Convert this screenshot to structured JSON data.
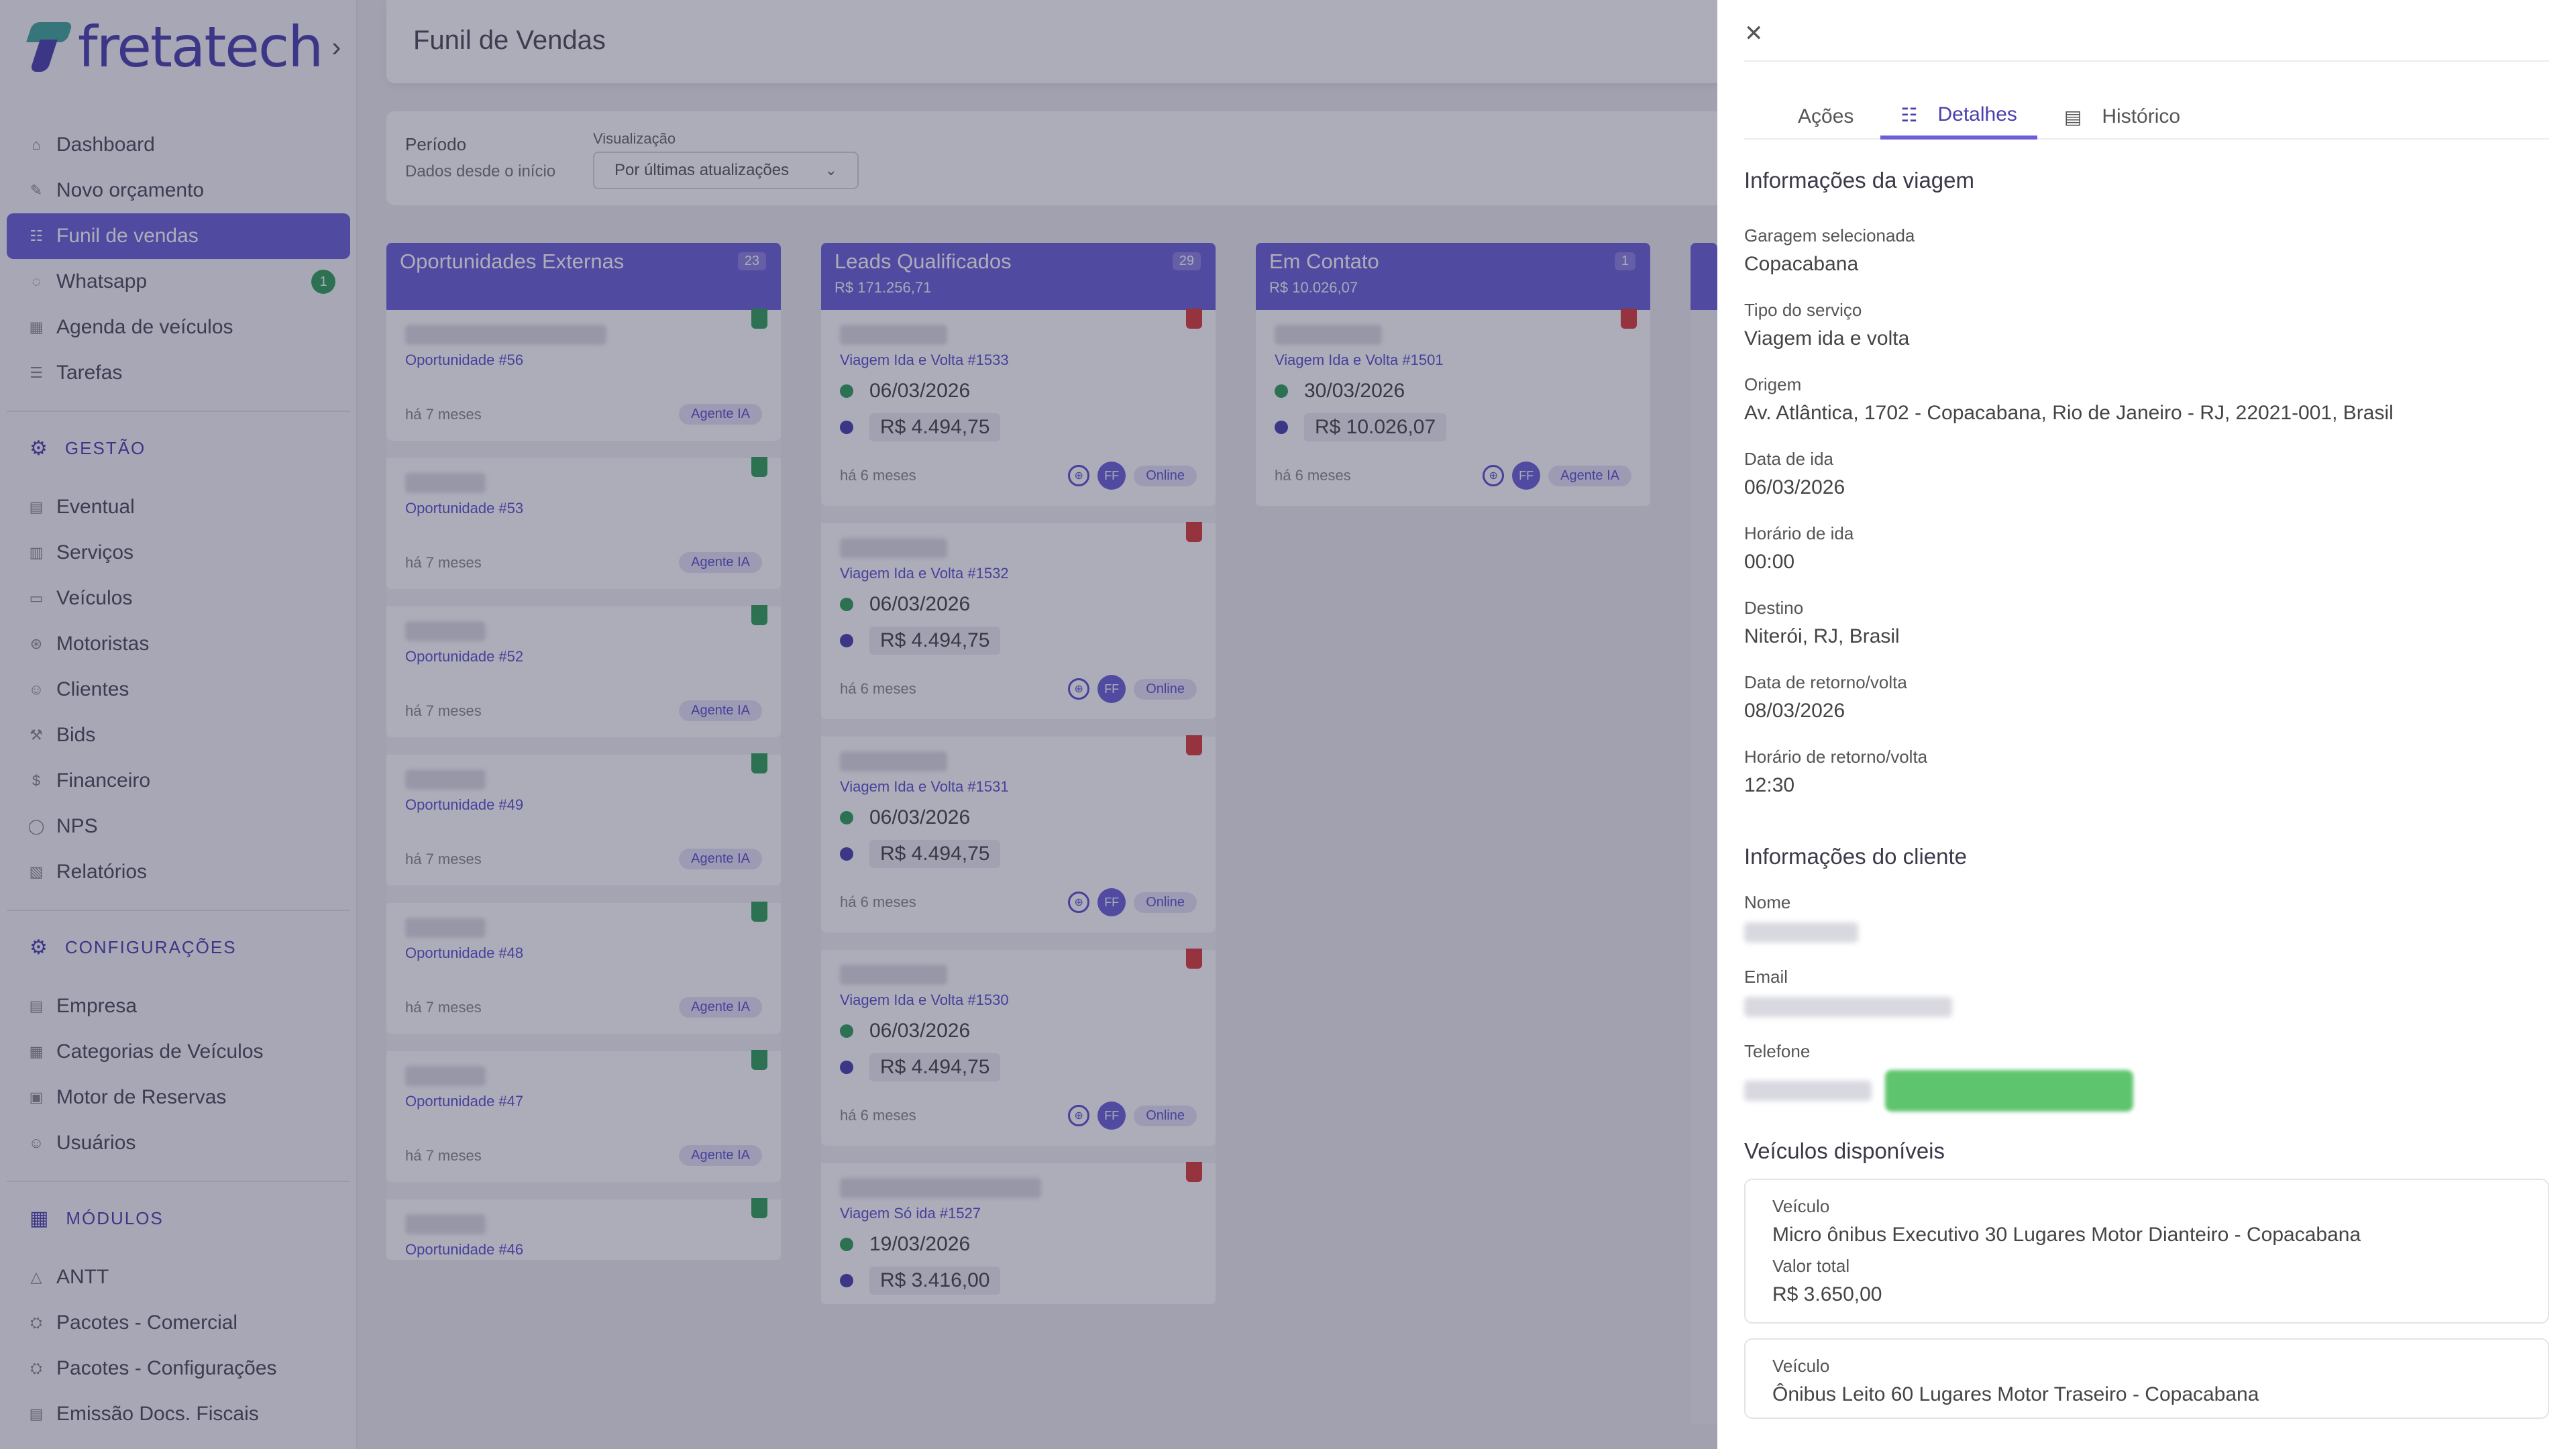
{
  "brand": {
    "name": "fretatech"
  },
  "sidebar": {
    "main_items": [
      {
        "label": "Dashboard",
        "icon": "home-icon"
      },
      {
        "label": "Novo orçamento",
        "icon": "edit-icon"
      },
      {
        "label": "Funil de vendas",
        "icon": "funnel-icon",
        "active": true
      },
      {
        "label": "Whatsapp",
        "icon": "whatsapp-icon",
        "badge": "1"
      },
      {
        "label": "Agenda de veículos",
        "icon": "calendar-icon"
      },
      {
        "label": "Tarefas",
        "icon": "list-icon"
      }
    ],
    "gestao_title": "GESTÃO",
    "gestao_items": [
      "Eventual",
      "Serviços",
      "Veículos",
      "Motoristas",
      "Clientes",
      "Bids",
      "Financeiro",
      "NPS",
      "Relatórios"
    ],
    "config_title": "CONFIGURAÇÕES",
    "config_items": [
      "Empresa",
      "Categorias de Veículos",
      "Motor de Reservas",
      "Usuários"
    ],
    "modulos_title": "MÓDULOS",
    "modulos_items": [
      "ANTT",
      "Pacotes - Comercial",
      "Pacotes - Configurações",
      "Emissão Docs. Fiscais"
    ]
  },
  "header": {
    "title": "Funil de Vendas"
  },
  "filters": {
    "period_label": "Período",
    "period_value": "Dados desde o início",
    "viz_label": "Visualização",
    "viz_value": "Por últimas atualizações"
  },
  "columns": [
    {
      "title": "Oportunidades Externas",
      "count": "23",
      "cards": [
        {
          "link": "Oportunidade #56",
          "time": "há 7 meses",
          "tag": "Agente IA"
        },
        {
          "link": "Oportunidade #53",
          "time": "há 7 meses",
          "tag": "Agente IA"
        },
        {
          "link": "Oportunidade #52",
          "time": "há 7 meses",
          "tag": "Agente IA"
        },
        {
          "link": "Oportunidade #49",
          "time": "há 7 meses",
          "tag": "Agente IA"
        },
        {
          "link": "Oportunidade #48",
          "time": "há 7 meses",
          "tag": "Agente IA"
        },
        {
          "link": "Oportunidade #47",
          "time": "há 7 meses",
          "tag": "Agente IA"
        },
        {
          "link": "Oportunidade #46"
        }
      ]
    },
    {
      "title": "Leads Qualificados",
      "subtitle": "R$ 171.256,71",
      "count": "29",
      "cards": [
        {
          "link": "Viagem Ida e Volta #1533",
          "date": "06/03/2026",
          "value": "R$ 4.494,75",
          "time": "há 6 meses",
          "avatar": "FF",
          "tag": "Online"
        },
        {
          "link": "Viagem Ida e Volta #1532",
          "date": "06/03/2026",
          "value": "R$ 4.494,75",
          "time": "há 6 meses",
          "avatar": "FF",
          "tag": "Online"
        },
        {
          "link": "Viagem Ida e Volta #1531",
          "date": "06/03/2026",
          "value": "R$ 4.494,75",
          "time": "há 6 meses",
          "avatar": "FF",
          "tag": "Online"
        },
        {
          "link": "Viagem Ida e Volta #1530",
          "date": "06/03/2026",
          "value": "R$ 4.494,75",
          "time": "há 6 meses",
          "avatar": "FF",
          "tag": "Online"
        },
        {
          "link": "Viagem Só ida #1527",
          "date": "19/03/2026",
          "value": "R$ 3.416,00"
        }
      ]
    },
    {
      "title": "Em Contato",
      "subtitle": "R$ 10.026,07",
      "count": "1",
      "cards": [
        {
          "link": "Viagem Ida e Volta #1501",
          "date": "30/03/2026",
          "value": "R$ 10.026,07",
          "time": "há 6 meses",
          "avatar": "FF",
          "tag": "Agente IA"
        }
      ]
    }
  ],
  "panel": {
    "tabs": [
      {
        "label": "Ações"
      },
      {
        "label": "Detalhes",
        "active": true
      },
      {
        "label": "Histórico"
      }
    ],
    "trip_title": "Informações da viagem",
    "trip_fields": [
      {
        "label": "Garagem selecionada",
        "value": "Copacabana"
      },
      {
        "label": "Tipo do serviço",
        "value": "Viagem ida e volta"
      },
      {
        "label": "Origem",
        "value": "Av. Atlântica, 1702 - Copacabana, Rio de Janeiro - RJ, 22021-001, Brasil"
      },
      {
        "label": "Data de ida",
        "value": "06/03/2026"
      },
      {
        "label": "Horário de ida",
        "value": "00:00"
      },
      {
        "label": "Destino",
        "value": "Niterói, RJ, Brasil"
      },
      {
        "label": "Data de retorno/volta",
        "value": "08/03/2026"
      },
      {
        "label": "Horário de retorno/volta",
        "value": "12:30"
      }
    ],
    "client_title": "Informações do cliente",
    "client_labels": {
      "name": "Nome",
      "email": "Email",
      "phone": "Telefone"
    },
    "vehicles_title": "Veículos disponíveis",
    "vehicles": [
      {
        "label": "Veículo",
        "name": "Micro ônibus Executivo 30 Lugares Motor Dianteiro - Copacabana",
        "total_label": "Valor total",
        "total": "R$ 3.650,00"
      },
      {
        "label": "Veículo",
        "name": "Ônibus Leito 60 Lugares Motor Traseiro - Copacabana"
      }
    ]
  },
  "colors": {
    "accent": "#6a5fd8",
    "brand": "#4a3fae",
    "green": "#2f9e5a",
    "red": "#d93a3a"
  }
}
